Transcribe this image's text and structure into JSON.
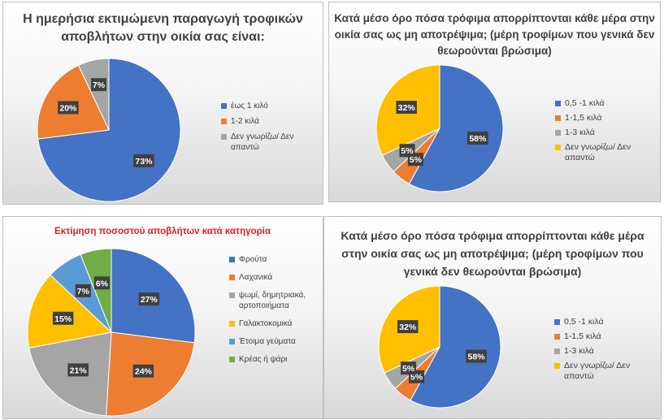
{
  "chart_data": [
    {
      "type": "pie",
      "title": "Η ημερήσια εκτιμώμενη παραγωγή τροφικών αποβλήτων στην οικία σας είναι:",
      "categories": [
        "έως 1 κιλό",
        "1-2 κιλά",
        "Δεν γνωρίζω/ Δεν απαντώ"
      ],
      "values": [
        73,
        20,
        7
      ],
      "labels": [
        "73%",
        "20%",
        "7%"
      ],
      "colors": [
        "#4472c4",
        "#ed7d31",
        "#a5a5a5"
      ],
      "legend_position": "right"
    },
    {
      "type": "pie",
      "title": "Κατά μέσο όρο πόσα τρόφιμα απορρίπτονται κάθε μέρα στην οικία σας ως μη αποτρέψιμα; (μέρη τροφίμων που γενικά δεν θεωρούνται βρώσιμα)",
      "categories": [
        "0,5 -1 κιλά",
        "1-1,5 κιλά",
        "1-3 κιλά",
        "Δεν γνωρίζω/ Δεν απαντώ"
      ],
      "values": [
        58,
        5,
        5,
        32
      ],
      "labels": [
        "58%",
        "5%",
        "5%",
        "32%"
      ],
      "colors": [
        "#4472c4",
        "#ed7d31",
        "#a5a5a5",
        "#ffc000"
      ],
      "legend_position": "right"
    },
    {
      "type": "pie",
      "title": "Εκτίμηση ποσοστού αποβλήτων κατά κατηγορία",
      "categories": [
        "Φρούτα",
        "Λαχανικά",
        "ψωμί, δημητριακά, αρτοποιήματα",
        "Γαλακτοκομικά",
        "Έτοιμα γεύματα",
        "Κρέας ή ψάρι"
      ],
      "values": [
        27,
        24,
        21,
        15,
        7,
        6
      ],
      "labels": [
        "27%",
        "24%",
        "21%",
        "15%",
        "7%",
        "6%"
      ],
      "colors": [
        "#4472c4",
        "#ed7d31",
        "#a5a5a5",
        "#ffc000",
        "#5b9bd5",
        "#70ad47"
      ],
      "legend_position": "right"
    },
    {
      "type": "pie",
      "title": "Κατά μέσο όρο πόσα τρόφιμα απορρίπτονται κάθε μέρα στην οικία σας ως μη αποτρέψιμα; (μέρη τροφίμων που γενικά δεν θεωρούνται βρώσιμα)",
      "categories": [
        "0,5 -1 κιλά",
        "1-1,5 κιλά",
        "1-3 κιλά",
        "Δεν γνωρίζω/ Δεν απαντώ"
      ],
      "values": [
        58,
        5,
        5,
        32
      ],
      "labels": [
        "58%",
        "5%",
        "5%",
        "32%"
      ],
      "colors": [
        "#4472c4",
        "#ed7d31",
        "#a5a5a5",
        "#ffc000"
      ],
      "legend_position": "right"
    }
  ]
}
